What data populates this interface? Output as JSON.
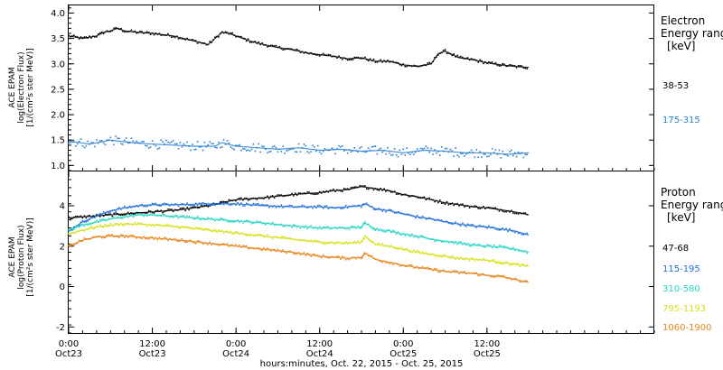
{
  "chart_data": [
    {
      "type": "scatter",
      "ylabel": [
        "ACE EPAM",
        "log(Electron Flux)",
        "[1/(cm²s ster MeV)]"
      ],
      "ylim": [
        0.9,
        4.15
      ],
      "xlim": [
        0,
        84
      ],
      "yticks": [
        "1.0",
        "1.5",
        "2.0",
        "2.5",
        "3.0",
        "3.5",
        "4.0"
      ],
      "legend": {
        "title": [
          "Electron",
          "Energy ranges"
        ],
        "unit": "[keV]",
        "placement": "right"
      },
      "series": [
        {
          "name": "38-53",
          "color": "#000000",
          "x": [
            0,
            2,
            4,
            5,
            6,
            7,
            8,
            10,
            12,
            15,
            18,
            20,
            22,
            23,
            24,
            26,
            28,
            30,
            32,
            34,
            36,
            38,
            40,
            42,
            44,
            46,
            48,
            50,
            52,
            53,
            54,
            56,
            58,
            60,
            62,
            64,
            66
          ],
          "y": [
            3.55,
            3.5,
            3.55,
            3.62,
            3.65,
            3.7,
            3.65,
            3.62,
            3.6,
            3.55,
            3.45,
            3.38,
            3.62,
            3.6,
            3.55,
            3.45,
            3.38,
            3.32,
            3.28,
            3.22,
            3.18,
            3.15,
            3.1,
            3.12,
            3.05,
            3.05,
            2.98,
            2.95,
            3.0,
            3.2,
            3.25,
            3.12,
            3.08,
            3.02,
            2.98,
            2.95,
            2.93
          ]
        },
        {
          "name": "175-315",
          "color": "#2a7fd4",
          "x": [
            0,
            3,
            6,
            9,
            12,
            15,
            18,
            21,
            22,
            24,
            27,
            30,
            33,
            36,
            39,
            42,
            45,
            48,
            51,
            54,
            57,
            60,
            63,
            66
          ],
          "y": [
            1.48,
            1.42,
            1.5,
            1.45,
            1.42,
            1.4,
            1.38,
            1.38,
            1.45,
            1.38,
            1.35,
            1.32,
            1.35,
            1.3,
            1.32,
            1.28,
            1.3,
            1.25,
            1.3,
            1.28,
            1.25,
            1.25,
            1.22,
            1.25
          ]
        }
      ]
    },
    {
      "type": "scatter",
      "ylabel": [
        "ACE EPAM",
        "log(Proton Flux)",
        "[1/(cm²s ster MeV)]"
      ],
      "ylim": [
        -2.3,
        5.7
      ],
      "xlim": [
        0,
        84
      ],
      "yticks": [
        "-2",
        "0",
        "2",
        "4"
      ],
      "xticks": [
        {
          "x": 0,
          "time": "0:00",
          "date": "Oct23"
        },
        {
          "x": 12,
          "time": "12:00",
          "date": "Oct23"
        },
        {
          "x": 24,
          "time": "0:00",
          "date": "Oct24"
        },
        {
          "x": 36,
          "time": "12:00",
          "date": "Oct24"
        },
        {
          "x": 48,
          "time": "0:00",
          "date": "Oct25"
        },
        {
          "x": 60,
          "time": "12:00",
          "date": "Oct25"
        }
      ],
      "xlabel": "hours:minutes, Oct. 22, 2015 - Oct. 25, 2015",
      "legend": {
        "title": [
          "Proton",
          "Energy ranges"
        ],
        "unit": "[keV]",
        "placement": "right"
      },
      "series": [
        {
          "name": "47-68",
          "color": "#000000",
          "x": [
            0,
            4,
            8,
            12,
            16,
            20,
            24,
            28,
            32,
            36,
            38,
            40,
            42,
            44,
            46,
            48,
            50,
            52,
            54,
            56,
            58,
            60,
            62,
            64,
            66
          ],
          "y": [
            3.4,
            3.5,
            3.6,
            3.7,
            3.8,
            4.0,
            4.3,
            4.4,
            4.55,
            4.65,
            4.75,
            4.8,
            4.95,
            4.85,
            4.75,
            4.55,
            4.45,
            4.3,
            4.15,
            4.05,
            3.95,
            3.9,
            3.8,
            3.7,
            3.55
          ]
        },
        {
          "name": "115-195",
          "color": "#1f6fd8",
          "x": [
            0,
            2,
            4,
            6,
            8,
            10,
            12,
            16,
            20,
            24,
            28,
            32,
            36,
            38,
            40,
            42,
            42.5,
            44,
            46,
            48,
            50,
            52,
            54,
            56,
            58,
            60,
            62,
            64,
            66
          ],
          "y": [
            2.75,
            3.2,
            3.5,
            3.75,
            3.9,
            4.0,
            4.05,
            4.05,
            4.1,
            4.1,
            4.0,
            3.95,
            3.95,
            3.9,
            3.95,
            4.0,
            4.1,
            3.85,
            3.75,
            3.6,
            3.45,
            3.35,
            3.2,
            3.1,
            3.0,
            2.95,
            2.85,
            2.75,
            2.55
          ]
        },
        {
          "name": "310-580",
          "color": "#27d6c4",
          "x": [
            0,
            2,
            4,
            6,
            8,
            10,
            12,
            16,
            20,
            24,
            28,
            32,
            36,
            40,
            42,
            42.5,
            44,
            46,
            48,
            50,
            52,
            54,
            56,
            58,
            60,
            62,
            64,
            66
          ],
          "y": [
            2.8,
            3.05,
            3.2,
            3.35,
            3.45,
            3.55,
            3.55,
            3.45,
            3.35,
            3.25,
            3.15,
            3.0,
            2.9,
            2.9,
            2.95,
            3.15,
            2.85,
            2.75,
            2.6,
            2.5,
            2.35,
            2.25,
            2.15,
            2.05,
            2.0,
            1.95,
            1.85,
            1.7
          ]
        },
        {
          "name": "795-1193",
          "color": "#d8e21a",
          "x": [
            0,
            2,
            4,
            6,
            8,
            10,
            12,
            16,
            20,
            24,
            28,
            32,
            36,
            40,
            42,
            42.5,
            44,
            46,
            48,
            50,
            52,
            54,
            56,
            58,
            60,
            62,
            64,
            66
          ],
          "y": [
            2.6,
            2.8,
            2.95,
            3.05,
            3.1,
            3.1,
            3.05,
            2.95,
            2.8,
            2.65,
            2.5,
            2.35,
            2.2,
            2.15,
            2.2,
            2.5,
            2.1,
            2.0,
            1.85,
            1.7,
            1.6,
            1.5,
            1.4,
            1.35,
            1.3,
            1.2,
            1.1,
            1.0
          ]
        },
        {
          "name": "1060-1900",
          "color": "#e8841c",
          "x": [
            0,
            2,
            4,
            6,
            8,
            10,
            12,
            16,
            20,
            24,
            28,
            32,
            36,
            40,
            42,
            42.5,
            44,
            46,
            48,
            50,
            52,
            54,
            56,
            58,
            60,
            62,
            64,
            66
          ],
          "y": [
            2.0,
            2.3,
            2.45,
            2.5,
            2.5,
            2.45,
            2.4,
            2.3,
            2.15,
            2.0,
            1.85,
            1.7,
            1.5,
            1.4,
            1.45,
            1.65,
            1.35,
            1.2,
            1.05,
            0.95,
            0.85,
            0.75,
            0.7,
            0.65,
            0.55,
            0.5,
            0.35,
            0.2
          ]
        }
      ]
    }
  ]
}
